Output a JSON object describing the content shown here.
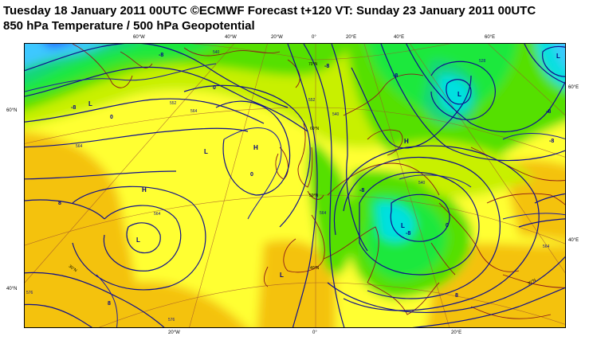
{
  "header": {
    "line1": "Tuesday 18 January 2011 00UTC ©ECMWF Forecast t+120 VT: Sunday 23 January 2011 00UTC",
    "line2": "850 hPa Temperature / 500 hPa Geopotential"
  },
  "top_ticks": [
    "60°W",
    "40°W",
    "20°W",
    "0°",
    "20°E",
    "40°E",
    "60°E"
  ],
  "bottom_ticks": [
    "20°W",
    "0°",
    "20°E"
  ],
  "left_ticks": [
    "60°N",
    "40°N"
  ],
  "right_ticks": [
    "60°E",
    "40°E"
  ],
  "inner_lat_labels": [
    "70°N",
    "60°N",
    "50°N",
    "40°N",
    "30°N"
  ],
  "inner_lat_labels_side": [
    "30°N",
    "30°N"
  ],
  "pressure_centers": [
    {
      "symbol": "L"
    },
    {
      "symbol": "L"
    },
    {
      "symbol": "H"
    },
    {
      "symbol": "L"
    },
    {
      "symbol": "H"
    },
    {
      "symbol": "L"
    },
    {
      "symbol": "H"
    },
    {
      "symbol": "L"
    },
    {
      "symbol": "L"
    },
    {
      "symbol": "L"
    }
  ],
  "temperature_labels": [
    "0",
    "0",
    "0",
    "-8",
    "-8",
    "-8",
    "-8",
    "-8",
    "8",
    "8",
    "0",
    "-8",
    "-8",
    "8",
    "-8"
  ],
  "contour_labels": [
    "540",
    "552",
    "564",
    "576",
    "564",
    "564",
    "552",
    "540",
    "528",
    "576",
    "540",
    "564",
    "564"
  ],
  "colors": {
    "warm_orange": "#f4c20d",
    "yellow": "#ffff33",
    "yellow_green": "#c8f000",
    "green": "#55e000",
    "bright_green": "#1ee83c",
    "cyan_green": "#18d67a",
    "cyan": "#00e0e0",
    "light_blue": "#3cc8ff",
    "blue": "#2060ff",
    "contour": "#10108c",
    "coast": "#8b1a1a"
  }
}
